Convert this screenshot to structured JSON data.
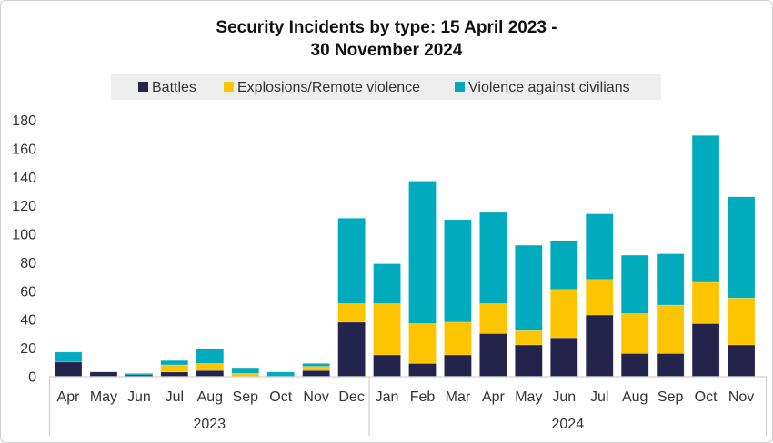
{
  "chart_data": {
    "type": "bar",
    "stacked": true,
    "title": "Security Incidents by type: 15 April 2023 - 30 November 2024",
    "title_lines": [
      "Security Incidents by type: 15 April 2023 -",
      "30 November 2024"
    ],
    "xlabel": "",
    "ylabel": "",
    "ylim": [
      0,
      180
    ],
    "yticks": [
      0,
      20,
      40,
      60,
      80,
      100,
      120,
      140,
      160,
      180
    ],
    "grid": false,
    "legend_position": "top",
    "categories": [
      "Apr",
      "May",
      "Jun",
      "Jul",
      "Aug",
      "Sep",
      "Oct",
      "Nov",
      "Dec",
      "Jan",
      "Feb",
      "Mar",
      "Apr",
      "May",
      "Jun",
      "Jul",
      "Aug",
      "Sep",
      "Oct",
      "Nov"
    ],
    "year_groups": [
      {
        "label": "2023",
        "count": 9
      },
      {
        "label": "2024",
        "count": 11
      }
    ],
    "series": [
      {
        "name": "Battles",
        "color": "#24234b",
        "values": [
          10,
          3,
          1,
          3,
          4,
          0,
          0,
          4,
          38,
          15,
          9,
          15,
          30,
          22,
          27,
          43,
          16,
          16,
          37,
          22
        ]
      },
      {
        "name": "Explosions/Remote violence",
        "color": "#fcc500",
        "values": [
          0,
          0,
          0,
          5,
          5,
          2,
          0,
          3,
          13,
          36,
          28,
          23,
          21,
          10,
          34,
          25,
          28,
          34,
          29,
          33
        ]
      },
      {
        "name": "Violence against civilians",
        "color": "#00abbd",
        "values": [
          7,
          0,
          1,
          3,
          10,
          4,
          3,
          2,
          60,
          28,
          100,
          72,
          64,
          60,
          34,
          46,
          41,
          36,
          103,
          71
        ]
      }
    ]
  }
}
